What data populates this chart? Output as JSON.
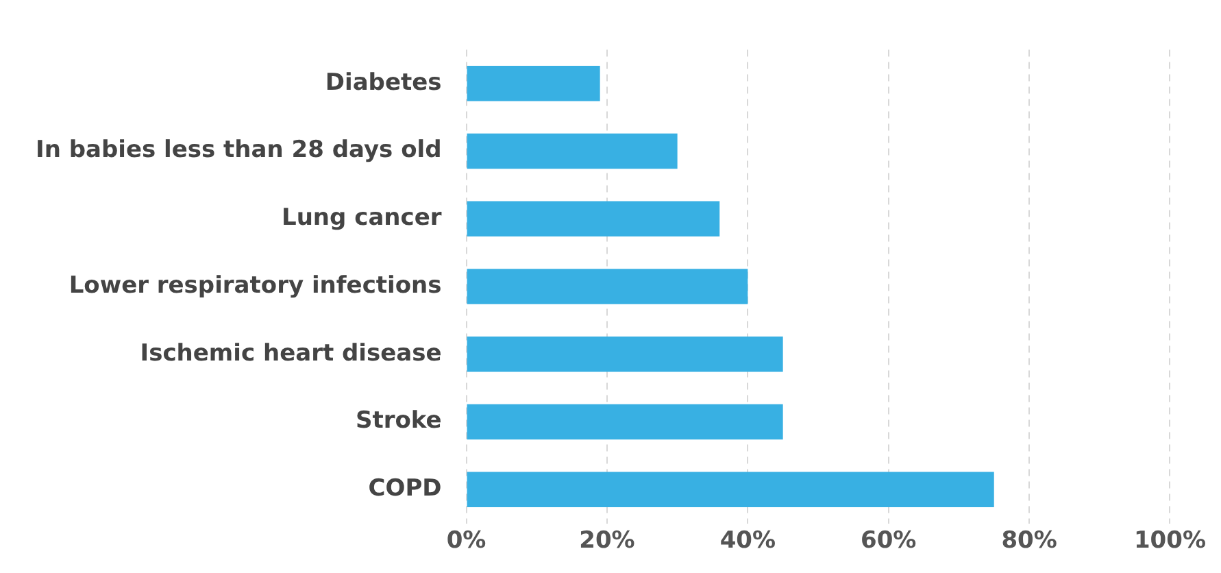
{
  "chart_data": {
    "type": "bar",
    "orientation": "horizontal",
    "categories": [
      "Diabetes",
      "In babies less than 28 days old",
      "Lung cancer",
      "Lower respiratory infections",
      "Ischemic heart disease",
      "Stroke",
      "COPD"
    ],
    "values": [
      19,
      30,
      36,
      40,
      45,
      45,
      75
    ],
    "color": "#38b0e3",
    "xlim": [
      0,
      100
    ],
    "xticks": [
      {
        "value": 0,
        "label": "0%"
      },
      {
        "value": 20,
        "label": "20%"
      },
      {
        "value": 40,
        "label": "40%"
      },
      {
        "value": 60,
        "label": "60%"
      },
      {
        "value": 80,
        "label": "80%"
      },
      {
        "value": 100,
        "label": "100%"
      }
    ],
    "grid": "x"
  }
}
